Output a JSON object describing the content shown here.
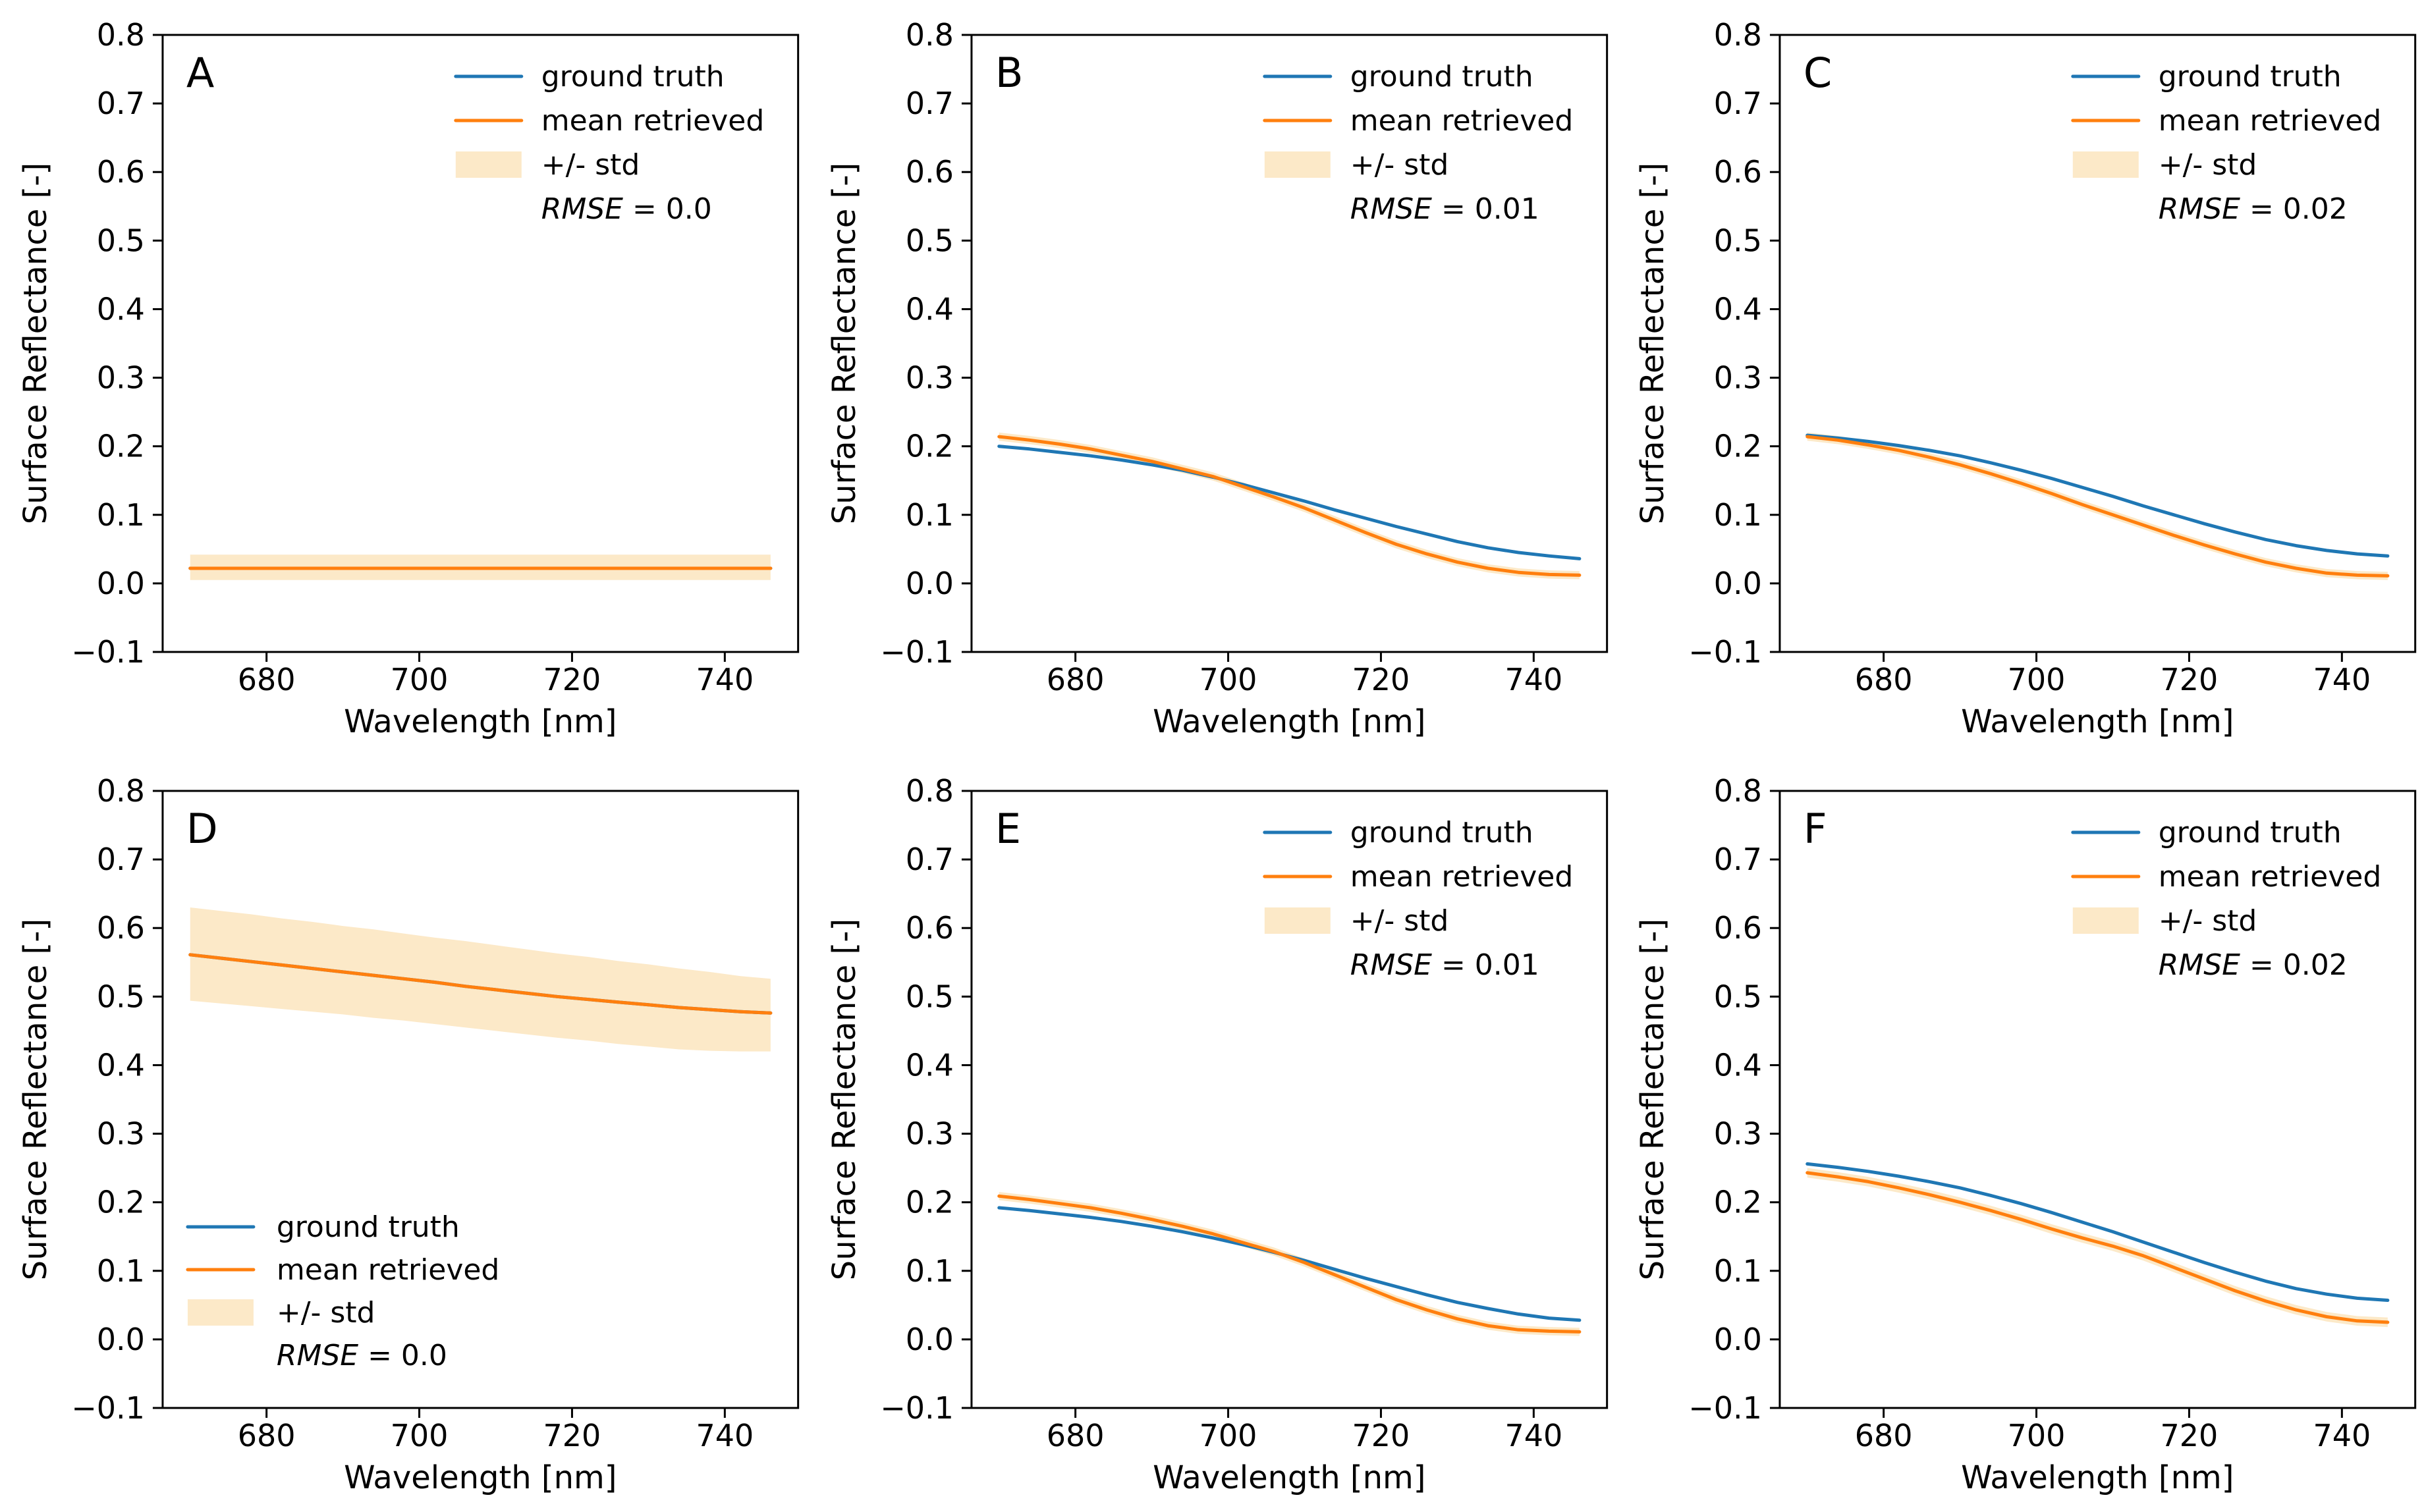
{
  "figure": {
    "background": "#ffffff",
    "xlabel": "Wavelength [nm]",
    "ylabel": "Surface Reflectance [-]",
    "colors": {
      "ground_truth": "#1f77b4",
      "mean_retrieved": "#ff7f0e",
      "std_band": "#fce9c8",
      "axis": "#000000",
      "text": "#000000"
    },
    "legend_labels": {
      "ground_truth": "ground truth",
      "mean_retrieved": "mean retrieved",
      "std": "+/- std",
      "rmse_word": "RMSE"
    }
  },
  "chart_data": [
    {
      "panel": "A",
      "type": "line",
      "title": "",
      "xlabel": "Wavelength [nm]",
      "ylabel": "Surface Reflectance [-]",
      "xlim": [
        666.4,
        749.6
      ],
      "ylim": [
        -0.1,
        0.8
      ],
      "xticks": [
        "680",
        "700",
        "720",
        "740"
      ],
      "xtick_values": [
        680,
        700,
        720,
        740
      ],
      "yticks": [
        "0.8",
        "0.7",
        "0.6",
        "0.5",
        "0.4",
        "0.3",
        "0.2",
        "0.1",
        "0.0",
        "−0.1"
      ],
      "ytick_values": [
        0.8,
        0.7,
        0.6,
        0.5,
        0.4,
        0.3,
        0.2,
        0.1,
        0.0,
        -0.1
      ],
      "grid": false,
      "legend_position": "upper-right",
      "rmse_text": "RMSE = 0.0",
      "rmse_rest": " = 0.0",
      "x": [
        670,
        674,
        678,
        682,
        686,
        690,
        694,
        698,
        702,
        706,
        710,
        714,
        718,
        722,
        726,
        730,
        734,
        738,
        742,
        746
      ],
      "series": [
        {
          "name": "ground truth",
          "values": [
            0.022,
            0.022,
            0.022,
            0.022,
            0.022,
            0.022,
            0.022,
            0.022,
            0.022,
            0.022,
            0.022,
            0.022,
            0.022,
            0.022,
            0.022,
            0.022,
            0.022,
            0.022,
            0.022,
            0.022
          ]
        },
        {
          "name": "mean retrieved",
          "values": [
            0.022,
            0.022,
            0.022,
            0.022,
            0.022,
            0.022,
            0.022,
            0.022,
            0.022,
            0.022,
            0.022,
            0.022,
            0.022,
            0.022,
            0.022,
            0.022,
            0.022,
            0.022,
            0.022,
            0.022
          ]
        }
      ],
      "band": {
        "name": "+/- std",
        "upper": [
          0.042,
          0.042,
          0.042,
          0.042,
          0.042,
          0.042,
          0.042,
          0.042,
          0.042,
          0.042,
          0.042,
          0.042,
          0.042,
          0.042,
          0.042,
          0.042,
          0.042,
          0.042,
          0.042,
          0.042
        ],
        "lower": [
          0.005,
          0.005,
          0.005,
          0.005,
          0.005,
          0.005,
          0.005,
          0.005,
          0.005,
          0.005,
          0.005,
          0.005,
          0.005,
          0.005,
          0.005,
          0.005,
          0.005,
          0.005,
          0.005,
          0.005
        ]
      }
    },
    {
      "panel": "B",
      "type": "line",
      "title": "",
      "xlabel": "Wavelength [nm]",
      "ylabel": "Surface Reflectance [-]",
      "xlim": [
        666.4,
        749.6
      ],
      "ylim": [
        -0.1,
        0.8
      ],
      "xticks": [
        "680",
        "700",
        "720",
        "740"
      ],
      "xtick_values": [
        680,
        700,
        720,
        740
      ],
      "yticks": [
        "0.8",
        "0.7",
        "0.6",
        "0.5",
        "0.4",
        "0.3",
        "0.2",
        "0.1",
        "0.0",
        "−0.1"
      ],
      "ytick_values": [
        0.8,
        0.7,
        0.6,
        0.5,
        0.4,
        0.3,
        0.2,
        0.1,
        0.0,
        -0.1
      ],
      "grid": false,
      "legend_position": "upper-right",
      "rmse_text": "RMSE = 0.01",
      "rmse_rest": " = 0.01",
      "x": [
        670,
        674,
        678,
        682,
        686,
        690,
        694,
        698,
        702,
        706,
        710,
        714,
        718,
        722,
        726,
        730,
        734,
        738,
        742,
        746
      ],
      "series": [
        {
          "name": "ground truth",
          "values": [
            0.2,
            0.196,
            0.191,
            0.186,
            0.18,
            0.173,
            0.165,
            0.155,
            0.144,
            0.132,
            0.12,
            0.107,
            0.095,
            0.083,
            0.072,
            0.061,
            0.052,
            0.045,
            0.04,
            0.036
          ]
        },
        {
          "name": "mean retrieved",
          "values": [
            0.214,
            0.209,
            0.203,
            0.196,
            0.187,
            0.178,
            0.167,
            0.156,
            0.141,
            0.126,
            0.11,
            0.092,
            0.074,
            0.057,
            0.043,
            0.031,
            0.022,
            0.016,
            0.013,
            0.012
          ]
        }
      ],
      "band": {
        "name": "+/- std",
        "upper": [
          0.22,
          0.215,
          0.209,
          0.202,
          0.193,
          0.184,
          0.173,
          0.162,
          0.147,
          0.132,
          0.116,
          0.098,
          0.08,
          0.063,
          0.049,
          0.037,
          0.028,
          0.022,
          0.019,
          0.018
        ],
        "lower": [
          0.208,
          0.203,
          0.197,
          0.19,
          0.181,
          0.172,
          0.161,
          0.15,
          0.135,
          0.12,
          0.104,
          0.086,
          0.068,
          0.051,
          0.037,
          0.025,
          0.016,
          0.01,
          0.007,
          0.006
        ]
      }
    },
    {
      "panel": "C",
      "type": "line",
      "title": "",
      "xlabel": "Wavelength [nm]",
      "ylabel": "Surface Reflectance [-]",
      "xlim": [
        666.4,
        749.6
      ],
      "ylim": [
        -0.1,
        0.8
      ],
      "xticks": [
        "680",
        "700",
        "720",
        "740"
      ],
      "xtick_values": [
        680,
        700,
        720,
        740
      ],
      "yticks": [
        "0.8",
        "0.7",
        "0.6",
        "0.5",
        "0.4",
        "0.3",
        "0.2",
        "0.1",
        "0.0",
        "−0.1"
      ],
      "ytick_values": [
        0.8,
        0.7,
        0.6,
        0.5,
        0.4,
        0.3,
        0.2,
        0.1,
        0.0,
        -0.1
      ],
      "grid": false,
      "legend_position": "upper-right",
      "rmse_text": "RMSE = 0.02",
      "rmse_rest": " = 0.02",
      "x": [
        670,
        674,
        678,
        682,
        686,
        690,
        694,
        698,
        702,
        706,
        710,
        714,
        718,
        722,
        726,
        730,
        734,
        738,
        742,
        746
      ],
      "series": [
        {
          "name": "ground truth",
          "values": [
            0.216,
            0.212,
            0.207,
            0.201,
            0.194,
            0.186,
            0.176,
            0.165,
            0.153,
            0.14,
            0.127,
            0.113,
            0.1,
            0.087,
            0.075,
            0.064,
            0.055,
            0.048,
            0.043,
            0.04
          ]
        },
        {
          "name": "mean retrieved",
          "values": [
            0.214,
            0.209,
            0.202,
            0.194,
            0.184,
            0.173,
            0.16,
            0.146,
            0.131,
            0.115,
            0.1,
            0.085,
            0.07,
            0.056,
            0.043,
            0.031,
            0.022,
            0.015,
            0.012,
            0.011
          ]
        }
      ],
      "band": {
        "name": "+/- std",
        "upper": [
          0.22,
          0.215,
          0.208,
          0.2,
          0.19,
          0.179,
          0.166,
          0.152,
          0.137,
          0.121,
          0.106,
          0.091,
          0.076,
          0.062,
          0.049,
          0.037,
          0.028,
          0.021,
          0.018,
          0.017
        ],
        "lower": [
          0.208,
          0.203,
          0.196,
          0.188,
          0.178,
          0.167,
          0.154,
          0.14,
          0.125,
          0.109,
          0.094,
          0.079,
          0.064,
          0.05,
          0.037,
          0.025,
          0.016,
          0.009,
          0.006,
          0.005
        ]
      }
    },
    {
      "panel": "D",
      "type": "line",
      "title": "",
      "xlabel": "Wavelength [nm]",
      "ylabel": "Surface Reflectance [-]",
      "xlim": [
        666.4,
        749.6
      ],
      "ylim": [
        -0.1,
        0.8
      ],
      "xticks": [
        "680",
        "700",
        "720",
        "740"
      ],
      "xtick_values": [
        680,
        700,
        720,
        740
      ],
      "yticks": [
        "0.8",
        "0.7",
        "0.6",
        "0.5",
        "0.4",
        "0.3",
        "0.2",
        "0.1",
        "0.0",
        "−0.1"
      ],
      "ytick_values": [
        0.8,
        0.7,
        0.6,
        0.5,
        0.4,
        0.3,
        0.2,
        0.1,
        0.0,
        -0.1
      ],
      "grid": false,
      "legend_position": "lower-left",
      "rmse_text": "RMSE = 0.0",
      "rmse_rest": " = 0.0",
      "x": [
        670,
        674,
        678,
        682,
        686,
        690,
        694,
        698,
        702,
        706,
        710,
        714,
        718,
        722,
        726,
        730,
        734,
        738,
        742,
        746
      ],
      "series": [
        {
          "name": "ground truth",
          "values": [
            0.561,
            0.556,
            0.551,
            0.546,
            0.541,
            0.536,
            0.531,
            0.526,
            0.521,
            0.515,
            0.51,
            0.505,
            0.5,
            0.496,
            0.492,
            0.488,
            0.484,
            0.481,
            0.478,
            0.476
          ]
        },
        {
          "name": "mean retrieved",
          "values": [
            0.561,
            0.556,
            0.551,
            0.546,
            0.541,
            0.536,
            0.531,
            0.526,
            0.521,
            0.515,
            0.51,
            0.505,
            0.5,
            0.496,
            0.492,
            0.488,
            0.484,
            0.481,
            0.478,
            0.476
          ]
        }
      ],
      "band": {
        "name": "+/- std",
        "upper": [
          0.63,
          0.625,
          0.62,
          0.614,
          0.609,
          0.603,
          0.598,
          0.592,
          0.586,
          0.581,
          0.575,
          0.569,
          0.563,
          0.558,
          0.552,
          0.547,
          0.541,
          0.536,
          0.53,
          0.526
        ],
        "lower": [
          0.494,
          0.49,
          0.486,
          0.482,
          0.478,
          0.474,
          0.469,
          0.465,
          0.46,
          0.455,
          0.45,
          0.445,
          0.44,
          0.436,
          0.431,
          0.427,
          0.423,
          0.421,
          0.42,
          0.42
        ]
      }
    },
    {
      "panel": "E",
      "type": "line",
      "title": "",
      "xlabel": "Wavelength [nm]",
      "ylabel": "Surface Reflectance [-]",
      "xlim": [
        666.4,
        749.6
      ],
      "ylim": [
        -0.1,
        0.8
      ],
      "xticks": [
        "680",
        "700",
        "720",
        "740"
      ],
      "xtick_values": [
        680,
        700,
        720,
        740
      ],
      "yticks": [
        "0.8",
        "0.7",
        "0.6",
        "0.5",
        "0.4",
        "0.3",
        "0.2",
        "0.1",
        "0.0",
        "−0.1"
      ],
      "ytick_values": [
        0.8,
        0.7,
        0.6,
        0.5,
        0.4,
        0.3,
        0.2,
        0.1,
        0.0,
        -0.1
      ],
      "grid": false,
      "legend_position": "upper-right",
      "rmse_text": "RMSE = 0.01",
      "rmse_rest": " = 0.01",
      "x": [
        670,
        674,
        678,
        682,
        686,
        690,
        694,
        698,
        702,
        706,
        710,
        714,
        718,
        722,
        726,
        730,
        734,
        738,
        742,
        746
      ],
      "series": [
        {
          "name": "ground truth",
          "values": [
            0.192,
            0.188,
            0.183,
            0.178,
            0.172,
            0.165,
            0.157,
            0.148,
            0.138,
            0.127,
            0.115,
            0.102,
            0.089,
            0.077,
            0.065,
            0.054,
            0.045,
            0.037,
            0.031,
            0.028
          ]
        },
        {
          "name": "mean retrieved",
          "values": [
            0.209,
            0.204,
            0.198,
            0.192,
            0.184,
            0.175,
            0.165,
            0.154,
            0.141,
            0.128,
            0.112,
            0.094,
            0.076,
            0.058,
            0.043,
            0.03,
            0.02,
            0.014,
            0.012,
            0.011
          ]
        }
      ],
      "band": {
        "name": "+/- std",
        "upper": [
          0.215,
          0.21,
          0.204,
          0.198,
          0.19,
          0.181,
          0.171,
          0.16,
          0.147,
          0.134,
          0.118,
          0.1,
          0.082,
          0.064,
          0.049,
          0.036,
          0.026,
          0.02,
          0.018,
          0.017
        ],
        "lower": [
          0.203,
          0.198,
          0.192,
          0.186,
          0.178,
          0.169,
          0.159,
          0.148,
          0.135,
          0.122,
          0.106,
          0.088,
          0.07,
          0.052,
          0.037,
          0.024,
          0.014,
          0.008,
          0.006,
          0.005
        ]
      }
    },
    {
      "panel": "F",
      "type": "line",
      "title": "",
      "xlabel": "Wavelength [nm]",
      "ylabel": "Surface Reflectance [-]",
      "xlim": [
        666.4,
        749.6
      ],
      "ylim": [
        -0.1,
        0.8
      ],
      "xticks": [
        "680",
        "700",
        "720",
        "740"
      ],
      "xtick_values": [
        680,
        700,
        720,
        740
      ],
      "yticks": [
        "0.8",
        "0.7",
        "0.6",
        "0.5",
        "0.4",
        "0.3",
        "0.2",
        "0.1",
        "0.0",
        "−0.1"
      ],
      "ytick_values": [
        0.8,
        0.7,
        0.6,
        0.5,
        0.4,
        0.3,
        0.2,
        0.1,
        0.0,
        -0.1
      ],
      "grid": false,
      "legend_position": "upper-right",
      "rmse_text": "RMSE = 0.02",
      "rmse_rest": " = 0.02",
      "x": [
        670,
        674,
        678,
        682,
        686,
        690,
        694,
        698,
        702,
        706,
        710,
        714,
        718,
        722,
        726,
        730,
        734,
        738,
        742,
        746
      ],
      "series": [
        {
          "name": "ground truth",
          "values": [
            0.256,
            0.251,
            0.245,
            0.238,
            0.23,
            0.221,
            0.21,
            0.198,
            0.185,
            0.171,
            0.157,
            0.142,
            0.127,
            0.112,
            0.098,
            0.085,
            0.074,
            0.066,
            0.06,
            0.057
          ]
        },
        {
          "name": "mean retrieved",
          "values": [
            0.243,
            0.237,
            0.23,
            0.221,
            0.211,
            0.2,
            0.188,
            0.175,
            0.161,
            0.148,
            0.136,
            0.122,
            0.105,
            0.088,
            0.071,
            0.056,
            0.043,
            0.033,
            0.027,
            0.025
          ]
        }
      ],
      "band": {
        "name": "+/- std",
        "upper": [
          0.25,
          0.244,
          0.237,
          0.228,
          0.218,
          0.207,
          0.195,
          0.182,
          0.168,
          0.155,
          0.143,
          0.129,
          0.112,
          0.095,
          0.078,
          0.063,
          0.05,
          0.04,
          0.034,
          0.032
        ],
        "lower": [
          0.236,
          0.23,
          0.223,
          0.214,
          0.204,
          0.193,
          0.181,
          0.168,
          0.154,
          0.141,
          0.129,
          0.115,
          0.098,
          0.081,
          0.064,
          0.049,
          0.036,
          0.026,
          0.02,
          0.018
        ]
      }
    }
  ]
}
